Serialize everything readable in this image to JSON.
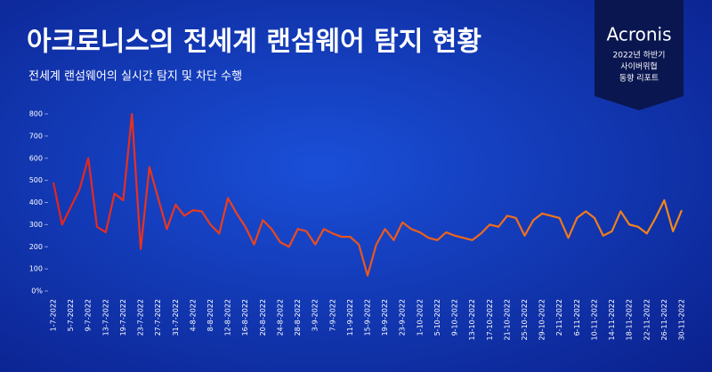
{
  "chart_data": {
    "type": "line",
    "title": "아크로니스의 전세계 랜섬웨어 탐지 현황",
    "subtitle": "전세계 랜섬웨어의 실시간 탐지 및 차단 수행",
    "badge": {
      "brand": "Acronis",
      "lines": [
        "2022년 하반기",
        "사이버위협",
        "동향 리포트"
      ]
    },
    "categories": [
      "1-7-2022",
      null,
      "5-7-2022",
      null,
      "9-7-2022",
      null,
      "13-7-2022",
      null,
      "19-7-2022",
      null,
      "23-7-2022",
      null,
      "27-7-2022",
      null,
      "31-7-2022",
      null,
      "4-8-2022",
      null,
      "8-8-2022",
      null,
      "12-8-2022",
      null,
      "16-8-2022",
      null,
      "20-8-2022",
      null,
      "24-8-2022",
      null,
      "28-8-2022",
      null,
      "3-9-2022",
      null,
      "7-9-2022",
      null,
      "11-9-2022",
      null,
      "15-9-2022",
      null,
      "19-9-2022",
      null,
      "23-9-2022",
      null,
      "1-10-2022",
      null,
      "5-10-2022",
      null,
      "9-10-2022",
      null,
      "13-10-2022",
      null,
      "17-10-2022",
      null,
      "21-10-2022",
      null,
      "25-10-2022",
      null,
      "29-10-2022",
      null,
      "2-11-2022",
      null,
      "6-11-2022",
      null,
      "10-11-2022",
      null,
      "14-11-2022",
      null,
      "18-11-2022",
      null,
      "22-11-2022",
      null,
      "26-11-2022",
      null,
      "30-11-2022"
    ],
    "values": [
      490,
      300,
      380,
      460,
      600,
      290,
      265,
      440,
      410,
      800,
      190,
      560,
      420,
      280,
      390,
      340,
      365,
      360,
      300,
      260,
      420,
      350,
      290,
      210,
      320,
      280,
      220,
      200,
      280,
      270,
      210,
      280,
      260,
      245,
      245,
      210,
      70,
      210,
      280,
      230,
      310,
      280,
      265,
      240,
      230,
      265,
      250,
      240,
      230,
      260,
      300,
      290,
      340,
      330,
      250,
      320,
      350,
      340,
      330,
      240,
      330,
      360,
      330,
      250,
      270,
      360,
      300,
      290,
      260,
      330,
      410,
      270,
      365
    ],
    "color_start": "#e8231c",
    "color_end": "#f28a1c",
    "ylim": [
      0,
      800
    ],
    "yticks": [
      {
        "value": 0,
        "label": "0%"
      },
      100,
      200,
      300,
      400,
      500,
      600,
      700,
      800
    ]
  }
}
